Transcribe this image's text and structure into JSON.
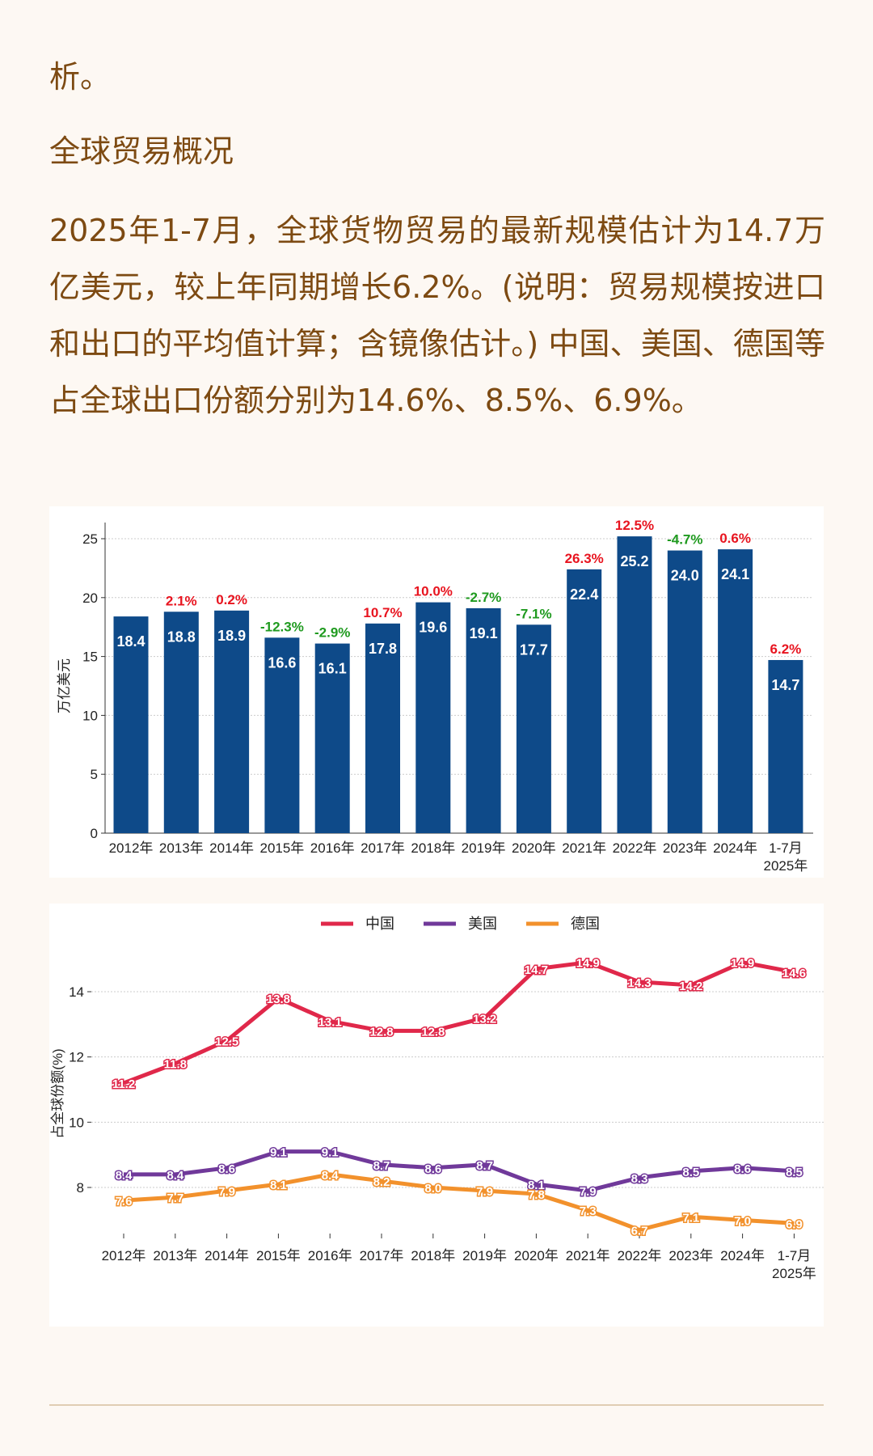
{
  "article": {
    "line0": "析。",
    "heading": "全球贸易概况",
    "paragraph": "2025年1-7月，全球货物贸易的最新规模估计为14.7万亿美元，较上年同期增长6.2%。(说明：贸易规模按进口和出口的平均值计算；含镜像估计。) 中国、美国、德国等占全球出口份额分别为14.6%、8.5%、6.9%。"
  },
  "colors": {
    "text": "#7d4a12",
    "bar": "#0e4a89",
    "positive": "#e8141f",
    "negative": "#1f9a1f",
    "china": "#e0284a",
    "usa": "#70399a",
    "germany": "#f2912c"
  },
  "chart_data": [
    {
      "type": "bar",
      "ylabel": "万亿美元",
      "ylim": [
        0,
        26
      ],
      "yticks": [
        0,
        5,
        10,
        15,
        20,
        25
      ],
      "grid": true,
      "categories": [
        "2012年",
        "2013年",
        "2014年",
        "2015年",
        "2016年",
        "2017年",
        "2018年",
        "2019年",
        "2020年",
        "2021年",
        "2022年",
        "2023年",
        "2024年",
        "1-7月\n2025年"
      ],
      "values": [
        18.4,
        18.8,
        18.9,
        16.6,
        16.1,
        17.8,
        19.6,
        19.1,
        17.7,
        22.4,
        25.2,
        24.0,
        24.1,
        14.7
      ],
      "value_labels": [
        "18.4",
        "18.8",
        "18.9",
        "16.6",
        "16.1",
        "17.8",
        "19.6",
        "19.1",
        "17.7",
        "22.4",
        "25.2",
        "24.0",
        "24.1",
        "14.7"
      ],
      "growth_labels": [
        "",
        "2.1%",
        "0.2%",
        "-12.3%",
        "-2.9%",
        "10.7%",
        "10.0%",
        "-2.7%",
        "-7.1%",
        "26.3%",
        "12.5%",
        "-4.7%",
        "0.6%",
        "6.2%"
      ]
    },
    {
      "type": "line",
      "ylabel": "占全球份额(%)",
      "ylim": [
        6.3,
        15.5
      ],
      "yticks": [
        8,
        10,
        12,
        14
      ],
      "grid": true,
      "legend": "top-center",
      "categories": [
        "2012年",
        "2013年",
        "2014年",
        "2015年",
        "2016年",
        "2017年",
        "2018年",
        "2019年",
        "2020年",
        "2021年",
        "2022年",
        "2023年",
        "2024年",
        "1-7月\n2025年"
      ],
      "series": [
        {
          "name": "中国",
          "color": "#e0284a",
          "values": [
            11.2,
            11.8,
            12.5,
            13.8,
            13.1,
            12.8,
            12.8,
            13.2,
            14.7,
            14.9,
            14.3,
            14.2,
            14.9,
            14.6
          ]
        },
        {
          "name": "美国",
          "color": "#70399a",
          "values": [
            8.4,
            8.4,
            8.6,
            9.1,
            9.1,
            8.7,
            8.6,
            8.7,
            8.1,
            7.9,
            8.3,
            8.5,
            8.6,
            8.5
          ]
        },
        {
          "name": "德国",
          "color": "#f2912c",
          "values": [
            7.6,
            7.7,
            7.9,
            8.1,
            8.4,
            8.2,
            8.0,
            7.9,
            7.8,
            7.3,
            6.7,
            7.1,
            7.0,
            6.9
          ]
        }
      ]
    }
  ]
}
